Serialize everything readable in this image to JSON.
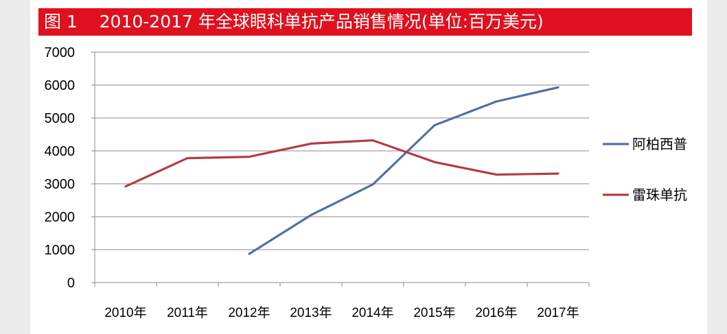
{
  "title": "图 1    2010-2017 年全球眼科单抗产品销售情况(单位:百万美元)",
  "colors": {
    "title_bar": "#e0101e",
    "series_1": "#4f6fa6",
    "series_2": "#b33c44",
    "grid": "#888888",
    "background": "#ececec"
  },
  "chart_data": {
    "type": "line",
    "categories": [
      "2010年",
      "2011年",
      "2012年",
      "2013年",
      "2014年",
      "2015年",
      "2016年",
      "2017年"
    ],
    "ylim": [
      0,
      7000
    ],
    "yticks": [
      0,
      1000,
      2000,
      3000,
      4000,
      5000,
      6000,
      7000
    ],
    "grid": true,
    "legend_position": "right",
    "series": [
      {
        "name": "阿柏西普",
        "color": "#4f6fa6",
        "values": [
          null,
          null,
          870,
          2050,
          2980,
          4780,
          5500,
          5930
        ]
      },
      {
        "name": "雷珠单抗",
        "color": "#b33c44",
        "values": [
          2920,
          3780,
          3820,
          4220,
          4320,
          3660,
          3280,
          3310
        ]
      }
    ]
  }
}
